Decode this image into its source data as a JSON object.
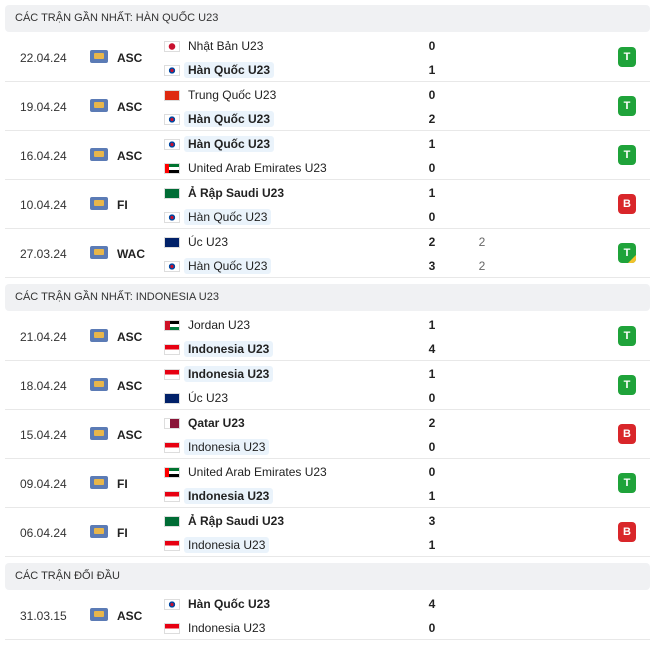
{
  "sections": [
    {
      "title": "CÁC TRẬN GẦN NHẤT: HÀN QUỐC U23",
      "matches": [
        {
          "date": "22.04.24",
          "competition": "ASC",
          "teams": [
            {
              "name": "Nhật Bản U23",
              "score": 0
            },
            {
              "name": "Hàn Quốc U23",
              "score": 1,
              "bold": true,
              "highlight": true
            }
          ],
          "result": "T",
          "result_color": "#1fa33a"
        },
        {
          "date": "19.04.24",
          "competition": "ASC",
          "teams": [
            {
              "name": "Trung Quốc U23",
              "score": 0
            },
            {
              "name": "Hàn Quốc U23",
              "score": 2,
              "bold": true,
              "highlight": true
            }
          ],
          "result": "T",
          "result_color": "#1fa33a"
        },
        {
          "date": "16.04.24",
          "competition": "ASC",
          "teams": [
            {
              "name": "Hàn Quốc U23",
              "score": 1,
              "bold": true,
              "highlight": true
            },
            {
              "name": "United Arab Emirates U23",
              "score": 0
            }
          ],
          "result": "T",
          "result_color": "#1fa33a"
        },
        {
          "date": "10.04.24",
          "competition": "FI",
          "teams": [
            {
              "name": "Ả Rập Saudi U23",
              "score": 1,
              "bold": true
            },
            {
              "name": "Hàn Quốc U23",
              "score": 0,
              "highlight": true
            }
          ],
          "result": "B",
          "result_color": "#d9262a"
        },
        {
          "date": "27.03.24",
          "competition": "WAC",
          "teams": [
            {
              "name": "Úc U23",
              "score": 2,
              "extra": 2
            },
            {
              "name": "Hàn Quốc U23",
              "score": 3,
              "extra": 2,
              "highlight": true
            }
          ],
          "result": "T",
          "result_color": "#1fa33a",
          "corner_color": "#f2c22b"
        }
      ]
    },
    {
      "title": "CÁC TRẬN GẦN NHẤT: INDONESIA U23",
      "matches": [
        {
          "date": "21.04.24",
          "competition": "ASC",
          "teams": [
            {
              "name": "Jordan U23",
              "score": 1
            },
            {
              "name": "Indonesia U23",
              "score": 4,
              "bold": true,
              "highlight": true
            }
          ],
          "result": "T",
          "result_color": "#1fa33a"
        },
        {
          "date": "18.04.24",
          "competition": "ASC",
          "teams": [
            {
              "name": "Indonesia U23",
              "score": 1,
              "bold": true,
              "highlight": true
            },
            {
              "name": "Úc U23",
              "score": 0
            }
          ],
          "result": "T",
          "result_color": "#1fa33a"
        },
        {
          "date": "15.04.24",
          "competition": "ASC",
          "teams": [
            {
              "name": "Qatar U23",
              "score": 2,
              "bold": true
            },
            {
              "name": "Indonesia U23",
              "score": 0,
              "highlight": true
            }
          ],
          "result": "B",
          "result_color": "#d9262a"
        },
        {
          "date": "09.04.24",
          "competition": "FI",
          "teams": [
            {
              "name": "United Arab Emirates U23",
              "score": 0
            },
            {
              "name": "Indonesia U23",
              "score": 1,
              "bold": true,
              "highlight": true
            }
          ],
          "result": "T",
          "result_color": "#1fa33a"
        },
        {
          "date": "06.04.24",
          "competition": "FI",
          "teams": [
            {
              "name": "Ả Rập Saudi U23",
              "score": 3,
              "bold": true
            },
            {
              "name": "Indonesia U23",
              "score": 1,
              "highlight": true
            }
          ],
          "result": "B",
          "result_color": "#d9262a"
        }
      ]
    },
    {
      "title": "CÁC TRẬN ĐỐI ĐẦU",
      "matches": [
        {
          "date": "31.03.15",
          "competition": "ASC",
          "teams": [
            {
              "name": "Hàn Quốc U23",
              "score": 4,
              "bold": true
            },
            {
              "name": "Indonesia U23",
              "score": 0
            }
          ]
        }
      ]
    }
  ]
}
